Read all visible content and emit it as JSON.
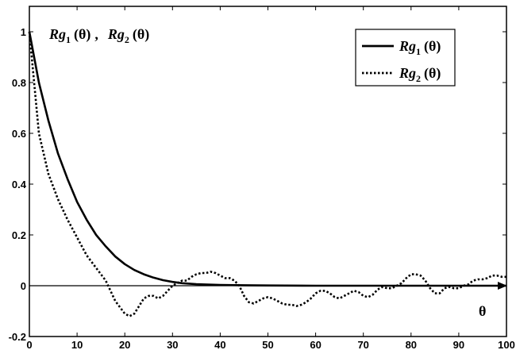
{
  "chart_data": {
    "type": "line",
    "title": "",
    "xlabel": "θ",
    "ylabel": "",
    "xlim": [
      0,
      100
    ],
    "ylim": [
      -0.2,
      1.1
    ],
    "grid": false,
    "legend_position": "top-right",
    "annotation": {
      "text": "Rg₁ (θ) ,  Rg₂ (θ)",
      "part1_main": "Rg",
      "part1_sub": "1",
      "part1_arg": "(θ)",
      "sep": ",",
      "part2_main": "Rg",
      "part2_sub": "2",
      "part2_arg": "(θ)"
    },
    "x_ticks": [
      0,
      10,
      20,
      30,
      40,
      50,
      60,
      70,
      80,
      90,
      100
    ],
    "y_ticks": [
      -0.2,
      0,
      0.2,
      0.4,
      0.6,
      0.8,
      1
    ],
    "x_tick_labels": [
      "0",
      "10",
      "20",
      "30",
      "40",
      "50",
      "60",
      "70",
      "80",
      "90",
      "100"
    ],
    "y_tick_labels": [
      "-0.2",
      "0",
      "0.2",
      "0.4",
      "0.6",
      "0.8",
      "1"
    ],
    "series": [
      {
        "name": "Rg₁ (θ)",
        "name_main": "Rg",
        "name_sub": "1",
        "name_arg": "(θ)",
        "style": "solid",
        "color": "#000000",
        "x": [
          0,
          2,
          4,
          6,
          8,
          10,
          12,
          14,
          16,
          18,
          20,
          22,
          24,
          26,
          28,
          30,
          32,
          35,
          40,
          45,
          50,
          60,
          70,
          80,
          90,
          100
        ],
        "y": [
          1.0,
          0.8,
          0.65,
          0.52,
          0.42,
          0.33,
          0.26,
          0.2,
          0.155,
          0.115,
          0.085,
          0.062,
          0.045,
          0.032,
          0.022,
          0.015,
          0.01,
          0.006,
          0.003,
          0.002,
          0.001,
          0.0,
          0.0,
          0.0,
          0.0,
          0.0
        ]
      },
      {
        "name": "Rg₂ (θ)",
        "name_main": "Rg",
        "name_sub": "2",
        "name_arg": "(θ)",
        "style": "dotted",
        "color": "#000000",
        "x": [
          0,
          2,
          4,
          6,
          8,
          10,
          12,
          14,
          16,
          18,
          20,
          21,
          22,
          23,
          24,
          25,
          26,
          27,
          28,
          29,
          30,
          31,
          32,
          33,
          34,
          35,
          36,
          37,
          38,
          39,
          40,
          41,
          42,
          43,
          44,
          45,
          46,
          47,
          48,
          49,
          50,
          51,
          52,
          53,
          54,
          55,
          56,
          57,
          58,
          59,
          60,
          61,
          62,
          63,
          64,
          65,
          66,
          67,
          68,
          69,
          70,
          71,
          72,
          73,
          74,
          75,
          76,
          77,
          78,
          79,
          80,
          81,
          82,
          83,
          84,
          85,
          86,
          87,
          88,
          89,
          90,
          91,
          92,
          93,
          94,
          95,
          96,
          97,
          98,
          99,
          100
        ],
        "y": [
          1.0,
          0.6,
          0.44,
          0.34,
          0.26,
          0.19,
          0.12,
          0.07,
          0.02,
          -0.06,
          -0.11,
          -0.12,
          -0.11,
          -0.08,
          -0.05,
          -0.04,
          -0.04,
          -0.05,
          -0.04,
          -0.02,
          0.0,
          0.01,
          0.02,
          0.02,
          0.035,
          0.045,
          0.05,
          0.05,
          0.055,
          0.05,
          0.04,
          0.03,
          0.03,
          0.02,
          0.0,
          -0.04,
          -0.065,
          -0.07,
          -0.06,
          -0.05,
          -0.045,
          -0.05,
          -0.06,
          -0.07,
          -0.075,
          -0.075,
          -0.08,
          -0.075,
          -0.065,
          -0.05,
          -0.03,
          -0.02,
          -0.02,
          -0.03,
          -0.045,
          -0.05,
          -0.04,
          -0.03,
          -0.02,
          -0.025,
          -0.04,
          -0.045,
          -0.035,
          -0.015,
          -0.005,
          -0.01,
          -0.01,
          0.0,
          0.01,
          0.03,
          0.045,
          0.045,
          0.04,
          0.02,
          -0.01,
          -0.03,
          -0.03,
          -0.01,
          -0.005,
          -0.01,
          -0.01,
          0.0,
          0.005,
          0.02,
          0.025,
          0.025,
          0.03,
          0.04,
          0.04,
          0.035,
          0.035
        ]
      }
    ]
  }
}
